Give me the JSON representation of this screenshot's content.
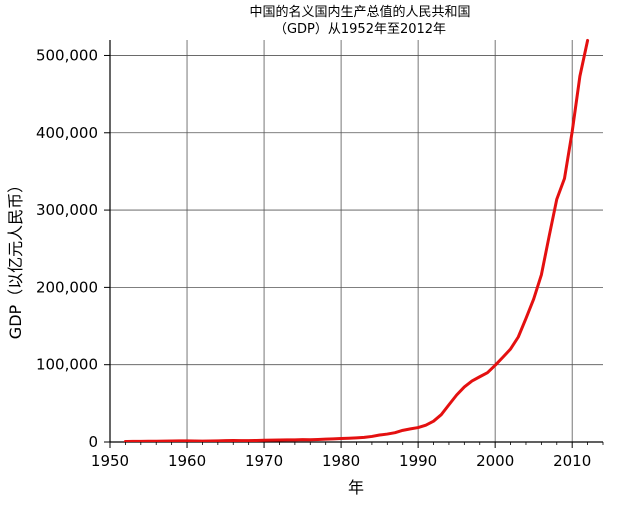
{
  "chart_data": {
    "type": "line",
    "title_line1": "中国的名义国内生产总值的人民共和国",
    "title_line2": "（GDP）从1952年至2012年",
    "xlabel": "年",
    "ylabel": "GDP（以亿元人民币）",
    "xlim": [
      1950,
      2014
    ],
    "ylim": [
      0,
      520000
    ],
    "grid": true,
    "x_ticks": [
      1950,
      1960,
      1970,
      1980,
      1990,
      2000,
      2010
    ],
    "x_tick_labels": [
      "1950",
      "1960",
      "1970",
      "1980",
      "1990",
      "2000",
      "2010"
    ],
    "y_ticks": [
      0,
      100000,
      200000,
      300000,
      400000,
      500000
    ],
    "y_tick_labels": [
      "0",
      "100,000",
      "200,000",
      "300,000",
      "400,000",
      "500,000"
    ],
    "line_color": "#e41010",
    "series": [
      {
        "x": [
          1952,
          1953,
          1954,
          1955,
          1956,
          1957,
          1958,
          1959,
          1960,
          1961,
          1962,
          1963,
          1964,
          1965,
          1966,
          1967,
          1968,
          1969,
          1970,
          1971,
          1972,
          1973,
          1974,
          1975,
          1976,
          1977,
          1978,
          1979,
          1980,
          1981,
          1982,
          1983,
          1984,
          1985,
          1986,
          1987,
          1988,
          1989,
          1990,
          1991,
          1992,
          1993,
          1994,
          1995,
          1996,
          1997,
          1998,
          1999,
          2000,
          2001,
          2002,
          2003,
          2004,
          2005,
          2006,
          2007,
          2008,
          2009,
          2010,
          2011,
          2012
        ],
        "values": [
          679,
          824,
          859,
          910,
          1028,
          1068,
          1307,
          1439,
          1457,
          1220,
          1149,
          1233,
          1454,
          1716,
          1868,
          1773,
          1723,
          1937,
          2252,
          2426,
          2518,
          2720,
          2789,
          2997,
          2943,
          3201,
          3645,
          4063,
          4546,
          4892,
          5323,
          5963,
          7208,
          9016,
          10275,
          12059,
          15043,
          16992,
          18668,
          21781,
          26923,
          35334,
          48198,
          60794,
          71177,
          78973,
          84402,
          89677,
          99215,
          109655,
          120333,
          135823,
          159878,
          184937,
          216314,
          265810,
          314045,
          340903,
          401513,
          473104,
          519470
        ]
      }
    ]
  }
}
